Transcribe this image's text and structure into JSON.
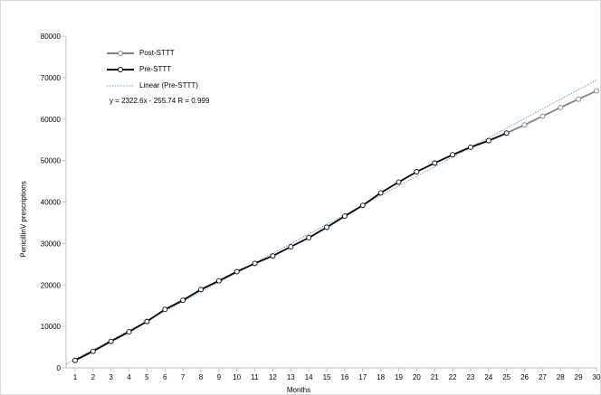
{
  "chart_data": {
    "type": "line",
    "xlabel": "Months",
    "ylabel": "PenicillinV prescriptions",
    "x": [
      1,
      2,
      3,
      4,
      5,
      6,
      7,
      8,
      9,
      10,
      11,
      12,
      13,
      14,
      15,
      16,
      17,
      18,
      19,
      20,
      21,
      22,
      23,
      24,
      25,
      26,
      27,
      28,
      29,
      30
    ],
    "ylim": [
      0,
      80000
    ],
    "yticks": [
      0,
      10000,
      20000,
      30000,
      40000,
      50000,
      60000,
      70000,
      80000
    ],
    "series": [
      {
        "name": "Post-STTT",
        "color": "#808080",
        "x": [
          25,
          26,
          27,
          28,
          29,
          30
        ],
        "values": [
          56600,
          58600,
          60700,
          62800,
          64800,
          66800
        ]
      },
      {
        "name": "Pre-STTT",
        "color": "#000000",
        "x": [
          1,
          2,
          3,
          4,
          5,
          6,
          7,
          8,
          9,
          10,
          11,
          12,
          13,
          14,
          15,
          16,
          17,
          18,
          19,
          20,
          21,
          22,
          23,
          24,
          25
        ],
        "values": [
          1800,
          4000,
          6400,
          8700,
          11200,
          14100,
          16300,
          18900,
          21000,
          23200,
          25200,
          27000,
          29200,
          31400,
          33900,
          36600,
          39200,
          42200,
          44800,
          47300,
          49400,
          51400,
          53200,
          54800,
          56600
        ]
      },
      {
        "name": "Linear (Pre-STTT)",
        "color": "#5b9bd5",
        "style": "dotted",
        "trendline": {
          "slope": 2322.6,
          "intercept": -255.74
        }
      }
    ],
    "annotation": "y = 2322.6x - 255.74  R = 0.999",
    "legend_position": "top-left",
    "grid": false
  }
}
